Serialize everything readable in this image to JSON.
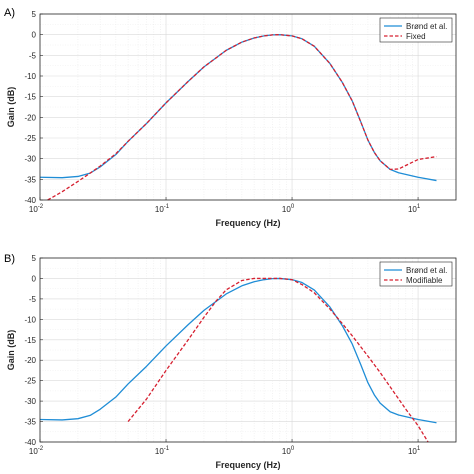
{
  "chart_data": [
    {
      "panel_label": "A)",
      "type": "line",
      "xlabel": "Frequency (Hz)",
      "ylabel": "Gain (dB)",
      "xscale": "log",
      "xlim": [
        0.01,
        20
      ],
      "ylim": [
        -40,
        5
      ],
      "x_ticks": [
        0.01,
        0.1,
        1,
        10
      ],
      "x_tick_labels": [
        [
          "10",
          "-2"
        ],
        [
          "10",
          "-1"
        ],
        [
          "10",
          "0"
        ],
        [
          "10",
          "1"
        ]
      ],
      "y_ticks": [
        5,
        0,
        -5,
        -10,
        -15,
        -20,
        -25,
        -30,
        -35,
        -40
      ],
      "y_tick_labels": [
        "5",
        "0",
        "-5",
        "-10",
        "-15",
        "-20",
        "-25",
        "-30",
        "-35",
        "-40"
      ],
      "grid": true,
      "minor_grid": true,
      "legend_position": "top-right",
      "series": [
        {
          "name": "Brønd et al.",
          "color": "#1f8dd6",
          "style": "solid",
          "x": [
            0.01,
            0.015,
            0.02,
            0.025,
            0.03,
            0.04,
            0.05,
            0.07,
            0.1,
            0.15,
            0.2,
            0.3,
            0.4,
            0.5,
            0.6,
            0.7,
            0.8,
            1.0,
            1.2,
            1.5,
            2.0,
            2.5,
            3.0,
            3.5,
            4.0,
            4.5,
            5.0,
            6.0,
            7.0,
            10.0,
            14.0
          ],
          "y": [
            -34.5,
            -34.6,
            -34.3,
            -33.5,
            -32.0,
            -29.0,
            -25.8,
            -21.5,
            -16.5,
            -11.3,
            -7.8,
            -3.8,
            -1.8,
            -0.8,
            -0.3,
            -0.05,
            0.0,
            -0.3,
            -1.0,
            -2.8,
            -7.0,
            -11.5,
            -16.0,
            -21.0,
            -25.5,
            -28.5,
            -30.5,
            -32.6,
            -33.4,
            -34.5,
            -35.3
          ]
        },
        {
          "name": "Fixed",
          "color": "#d62030",
          "style": "dashed",
          "x": [
            0.0115,
            0.015,
            0.02,
            0.025,
            0.03,
            0.04,
            0.05,
            0.07,
            0.1,
            0.15,
            0.2,
            0.3,
            0.4,
            0.5,
            0.6,
            0.7,
            0.8,
            1.0,
            1.2,
            1.5,
            2.0,
            2.5,
            3.0,
            3.5,
            4.0,
            4.5,
            5.0,
            6.0,
            7.0,
            10.0,
            14.0
          ],
          "y": [
            -40.0,
            -38.0,
            -35.5,
            -33.5,
            -31.8,
            -28.8,
            -25.8,
            -21.5,
            -16.5,
            -11.3,
            -7.8,
            -3.8,
            -1.8,
            -0.8,
            -0.3,
            -0.05,
            0.0,
            -0.3,
            -1.0,
            -2.8,
            -7.0,
            -11.5,
            -16.0,
            -21.0,
            -25.5,
            -28.5,
            -30.5,
            -32.6,
            -32.5,
            -30.2,
            -29.5
          ]
        }
      ]
    },
    {
      "panel_label": "B)",
      "type": "line",
      "xlabel": "Frequency (Hz)",
      "ylabel": "Gain (dB)",
      "xscale": "log",
      "xlim": [
        0.01,
        20
      ],
      "ylim": [
        -40,
        5
      ],
      "x_ticks": [
        0.01,
        0.1,
        1,
        10
      ],
      "x_tick_labels": [
        [
          "10",
          "-2"
        ],
        [
          "10",
          "-1"
        ],
        [
          "10",
          "0"
        ],
        [
          "10",
          "1"
        ]
      ],
      "y_ticks": [
        5,
        0,
        -5,
        -10,
        -15,
        -20,
        -25,
        -30,
        -35,
        -40
      ],
      "y_tick_labels": [
        "5",
        "0",
        "-5",
        "-10",
        "-15",
        "-20",
        "-25",
        "-30",
        "-35",
        "-40"
      ],
      "grid": true,
      "minor_grid": true,
      "legend_position": "top-right",
      "series": [
        {
          "name": "Brønd et al.",
          "color": "#1f8dd6",
          "style": "solid",
          "x": [
            0.01,
            0.015,
            0.02,
            0.025,
            0.03,
            0.04,
            0.05,
            0.07,
            0.1,
            0.15,
            0.2,
            0.3,
            0.4,
            0.5,
            0.6,
            0.7,
            0.8,
            1.0,
            1.2,
            1.5,
            2.0,
            2.5,
            3.0,
            3.5,
            4.0,
            4.5,
            5.0,
            6.0,
            7.0,
            10.0,
            14.0
          ],
          "y": [
            -34.5,
            -34.6,
            -34.3,
            -33.5,
            -32.0,
            -29.0,
            -25.8,
            -21.5,
            -16.5,
            -11.3,
            -7.8,
            -3.8,
            -1.8,
            -0.8,
            -0.3,
            -0.05,
            0.0,
            -0.3,
            -1.0,
            -2.8,
            -7.0,
            -11.5,
            -16.0,
            -21.0,
            -25.5,
            -28.5,
            -30.5,
            -32.6,
            -33.4,
            -34.5,
            -35.3
          ]
        },
        {
          "name": "Modifiable",
          "color": "#d62030",
          "style": "dashed",
          "x": [
            0.05,
            0.07,
            0.1,
            0.15,
            0.2,
            0.25,
            0.3,
            0.4,
            0.5,
            0.6,
            0.7,
            0.8,
            1.0,
            1.2,
            1.5,
            2.0,
            2.5,
            3.0,
            4.0,
            5.0,
            6.0,
            8.0,
            10.0,
            12.0
          ],
          "y": [
            -35.0,
            -29.5,
            -22.5,
            -15.0,
            -9.5,
            -5.5,
            -2.8,
            -0.5,
            0.0,
            0.0,
            0.0,
            0.0,
            -0.3,
            -1.5,
            -3.5,
            -7.5,
            -11.0,
            -14.0,
            -19.0,
            -23.0,
            -26.5,
            -32.0,
            -36.0,
            -40.0
          ]
        }
      ]
    }
  ]
}
